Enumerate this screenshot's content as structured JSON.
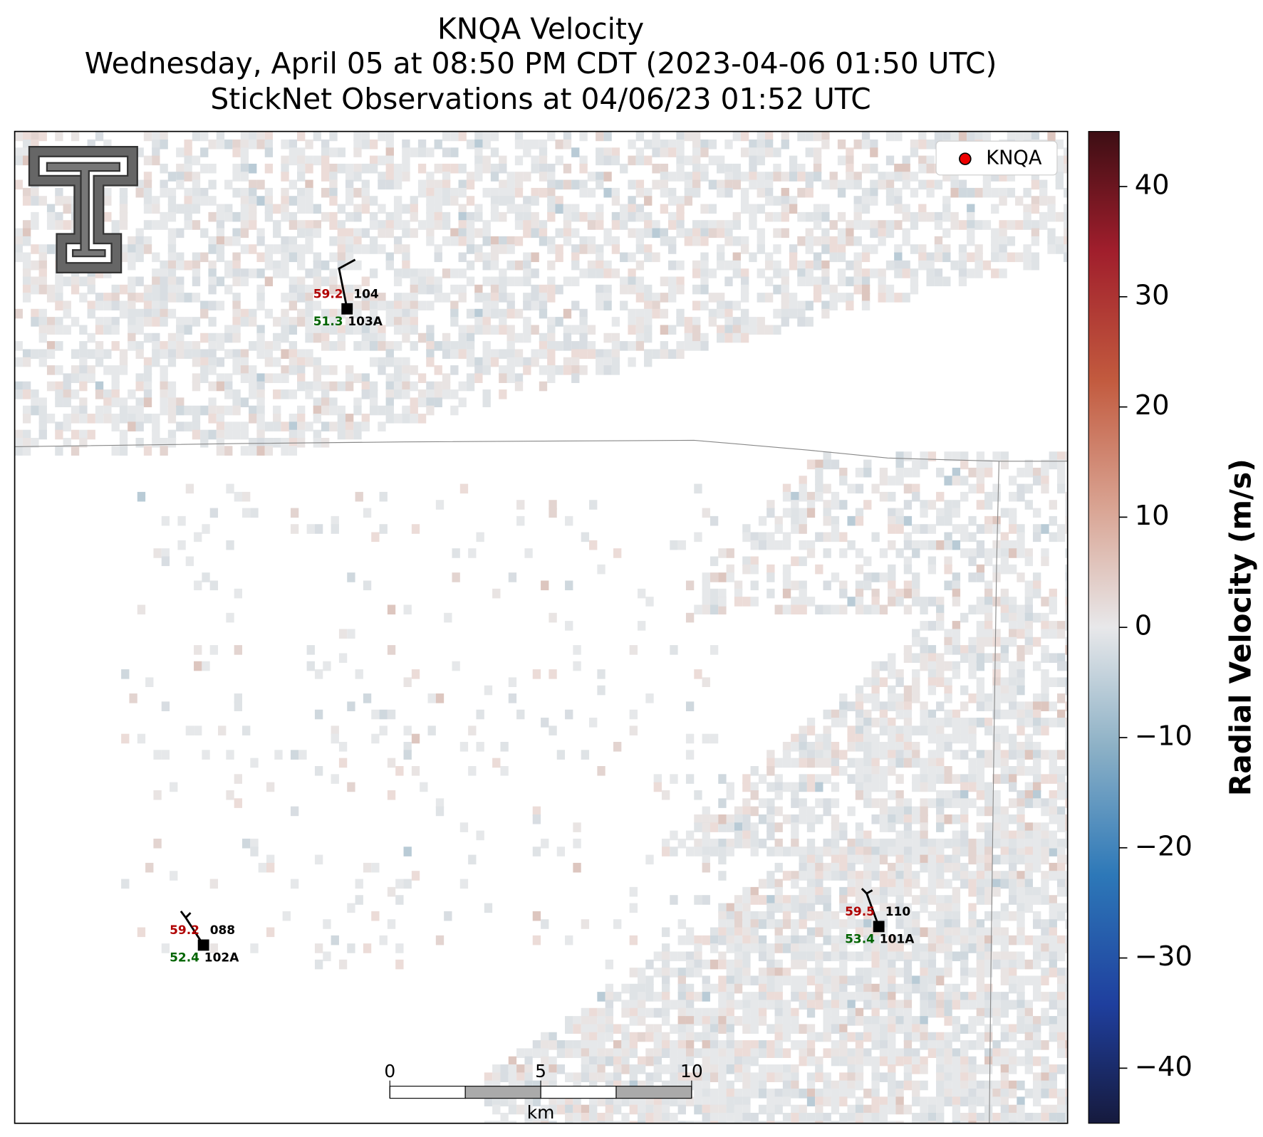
{
  "chart_data": {
    "type": "radar-map",
    "title": "KNQA Velocity",
    "subtitle": "Wednesday, April 05 at 08:50 PM CDT (2023-04-06 01:50 UTC)",
    "subtitle2": "StickNet Observations at 04/06/23 01:52 UTC",
    "legend": "KNQA",
    "colorbar": {
      "label": "Radial Velocity (m/s)",
      "lim": [
        -45,
        45
      ],
      "ticks": [
        {
          "value": -40,
          "label": "−40"
        },
        {
          "value": -30,
          "label": "−30"
        },
        {
          "value": -20,
          "label": "−20"
        },
        {
          "value": -10,
          "label": "−10"
        },
        0,
        10,
        20,
        30,
        40
      ]
    },
    "stations": [
      {
        "id": "104",
        "sub": "103A",
        "temp": 59.2,
        "dew": 51.3
      },
      {
        "id": "088",
        "sub": "102A",
        "temp": 59.2,
        "dew": 52.4
      },
      {
        "id": "110",
        "sub": "101A",
        "temp": 59.5,
        "dew": 53.4
      }
    ],
    "scale_bar": {
      "ticks": [
        0,
        5,
        10
      ],
      "unit": "km"
    }
  }
}
